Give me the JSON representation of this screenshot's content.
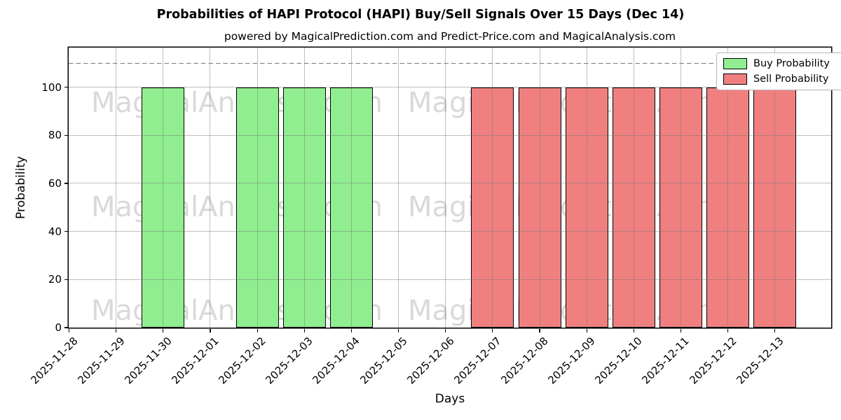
{
  "title": "Probabilities of HAPI Protocol (HAPI) Buy/Sell Signals Over 15 Days (Dec 14)",
  "subtitle": "powered by MagicalPrediction.com and Predict-Price.com and MagicalAnalysis.com",
  "chart_data": {
    "type": "bar",
    "categories": [
      "2025-11-28",
      "2025-11-29",
      "2025-11-30",
      "2025-12-01",
      "2025-12-02",
      "2025-12-03",
      "2025-12-04",
      "2025-12-05",
      "2025-12-06",
      "2025-12-07",
      "2025-12-08",
      "2025-12-09",
      "2025-12-10",
      "2025-12-11",
      "2025-12-12",
      "2025-12-13"
    ],
    "series": [
      {
        "name": "Buy Probability",
        "color": "#90EE90",
        "values": [
          0,
          0,
          100,
          0,
          100,
          100,
          100,
          0,
          0,
          0,
          0,
          0,
          0,
          0,
          0,
          0
        ]
      },
      {
        "name": "Sell Probability",
        "color": "#F08080",
        "values": [
          0,
          0,
          0,
          0,
          0,
          0,
          0,
          0,
          0,
          100,
          100,
          100,
          100,
          100,
          100,
          100
        ]
      }
    ],
    "xlabel": "Days",
    "ylabel": "Probability",
    "ylim": [
      0,
      116.5
    ],
    "yticks": [
      0,
      20,
      40,
      60,
      80,
      100
    ],
    "threshold_line": 110,
    "grid": true,
    "legend_position": "upper right",
    "bar_edge_color": "#000000",
    "grid_color": "#b9b9b9",
    "dashed_line_color": "#7a7a7a",
    "watermarks": [
      "MagicalAnalysis.com",
      "MagicalPrediction.com"
    ]
  }
}
